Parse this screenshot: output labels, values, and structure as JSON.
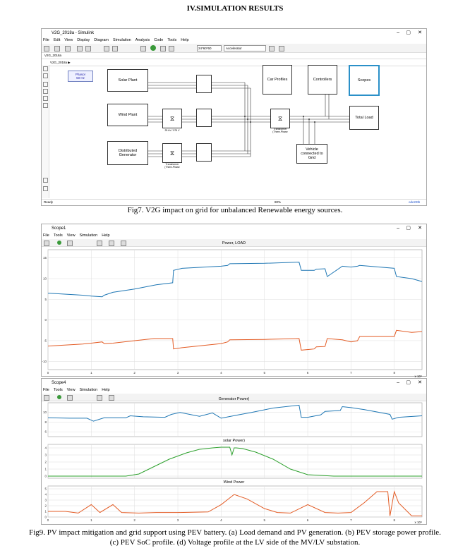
{
  "heading": "IV.SIMULATION RESULTS",
  "fig7": {
    "caption": "Fig7. V2G impact on grid for unbalanced Renewable energy sources.",
    "window_title": "V2G_2018a - Simulink",
    "menu": [
      "File",
      "Edit",
      "View",
      "Display",
      "Diagram",
      "Simulation",
      "Analysis",
      "Code",
      "Tools",
      "Help"
    ],
    "tab": "V2G_2018a",
    "breadcrumb": "V2G_2018a",
    "sim_time": "24*60*60",
    "sim_mode": "Accelerator",
    "blocks": {
      "powergui_line1": "Phasor",
      "powergui_line2": "50 Hz",
      "solar": "Solar Plant",
      "wind": "Wind Plant",
      "dg_line1": "Distributed",
      "dg_line2": "Generator",
      "car": "Car Profiles",
      "controllers": "Controllers",
      "scopes": "Scopes",
      "total_load": "Total Load",
      "vehicle_line1": "Vehicle",
      "vehicle_line2": "connected to",
      "vehicle_line3": "Grid",
      "tr1": "25 kV / 575 V",
      "tr2_line1": "Transformer",
      "tr2_line2": "(Three-Phase",
      "tr3_line1": "Transformer",
      "tr3_line2": "(Three-Phase"
    },
    "status_left": "Ready",
    "status_mid": "80%",
    "status_right": "ode23tb"
  },
  "scope1": {
    "window_title": "Scope1",
    "menu": [
      "File",
      "Tools",
      "View",
      "Simulation",
      "Help"
    ],
    "plot_title": "Power, LOAD",
    "yticks": [
      "15",
      "10",
      "5",
      "0",
      "-5",
      "-10"
    ],
    "xticks": [
      "0",
      "1",
      "2",
      "3",
      "4",
      "5",
      "6",
      "7",
      "8"
    ],
    "x_exponent": "x 10⁴"
  },
  "scope4": {
    "window_title": "Scope4",
    "menu": [
      "File",
      "Tools",
      "View",
      "Simulation",
      "Help"
    ],
    "plots": [
      {
        "title": "Generator Power)",
        "yticks": [
          "10",
          "8",
          "6"
        ]
      },
      {
        "title": "solar Power)",
        "yticks": [
          "4",
          "3",
          "2",
          "1",
          "0"
        ]
      },
      {
        "title": "Wind Power",
        "yticks": [
          "5",
          "4",
          "3",
          "2",
          "1",
          "0"
        ]
      }
    ],
    "xticks": [
      "0",
      "1",
      "2",
      "3",
      "4",
      "5",
      "6",
      "7",
      "8"
    ],
    "x_exponent": "x 10⁴"
  },
  "chart_data": [
    {
      "type": "line",
      "title": "Power, LOAD",
      "xlabel": "",
      "ylabel": "",
      "xlim": [
        0,
        86400
      ],
      "ylim": [
        -12,
        17
      ],
      "grid": true,
      "series": [
        {
          "color": "#1f77b4",
          "x": [
            0,
            8000,
            10000,
            12500,
            13000,
            15000,
            20000,
            25000,
            28800,
            29000,
            31000,
            40000,
            41500,
            42000,
            50000,
            58000,
            58500,
            61500,
            62000,
            64000,
            64500,
            68000,
            70000,
            71500,
            72000,
            80000,
            80500,
            84000,
            86400
          ],
          "values": [
            6.5,
            6.0,
            5.8,
            5.6,
            6.0,
            6.7,
            7.5,
            8.5,
            9.0,
            12.0,
            12.5,
            13.0,
            13.2,
            13.6,
            13.7,
            14.0,
            12.0,
            12.0,
            12.3,
            12.4,
            10.5,
            13.0,
            12.8,
            13.0,
            13.2,
            12.5,
            10.5,
            10.0,
            9.3
          ]
        },
        {
          "color": "#e35b24",
          "x": [
            0,
            8000,
            10000,
            12500,
            13000,
            15000,
            20000,
            24500,
            28800,
            29000,
            31000,
            40000,
            41500,
            42000,
            50000,
            58000,
            58500,
            61500,
            62000,
            64000,
            64500,
            68000,
            70000,
            71500,
            72000,
            80000,
            80500,
            84000,
            86400
          ],
          "values": [
            -6.3,
            -5.8,
            -5.6,
            -5.3,
            -5.7,
            -5.6,
            -5.0,
            -4.5,
            -4.5,
            -7.0,
            -6.7,
            -5.7,
            -5.3,
            -4.8,
            -4.7,
            -4.5,
            -7.3,
            -7.0,
            -6.5,
            -6.4,
            -4.5,
            -4.8,
            -5.3,
            -5.0,
            -4.0,
            -4.0,
            -2.5,
            -3.0,
            -2.8
          ]
        }
      ]
    },
    {
      "type": "line",
      "title": "Generator Power)",
      "xlim": [
        0,
        86400
      ],
      "ylim": [
        5,
        12
      ],
      "grid": true,
      "series": [
        {
          "color": "#1f77b4",
          "x": [
            0,
            5000,
            9000,
            10500,
            13000,
            18000,
            19000,
            22000,
            27000,
            28500,
            30500,
            35000,
            38000,
            40000,
            44000,
            47000,
            52000,
            58000,
            58500,
            60000,
            63000,
            64000,
            67500,
            68000,
            70000,
            73000,
            79000,
            79500,
            81000,
            86400
          ],
          "values": [
            8.9,
            8.8,
            8.8,
            8.2,
            8.9,
            8.9,
            9.3,
            9.1,
            9.0,
            9.6,
            10.0,
            9.2,
            9.9,
            8.8,
            9.5,
            10.0,
            10.9,
            11.5,
            9.0,
            9.0,
            9.5,
            10.2,
            10.4,
            11.2,
            11.0,
            10.6,
            9.6,
            8.6,
            9.0,
            9.3
          ]
        }
      ]
    },
    {
      "type": "line",
      "title": "solar Power)",
      "xlim": [
        0,
        86400
      ],
      "ylim": [
        -0.3,
        4.5
      ],
      "grid": true,
      "series": [
        {
          "color": "#2ca02c",
          "x": [
            0,
            10000,
            18000,
            21000,
            24000,
            28000,
            32000,
            35000,
            38000,
            40000,
            42000,
            42500,
            43000,
            43500,
            45000,
            48000,
            52000,
            56000,
            60000,
            66000,
            86400
          ],
          "values": [
            0,
            0,
            0,
            0.3,
            1.2,
            2.4,
            3.3,
            3.8,
            4.0,
            4.1,
            4.1,
            3.0,
            4.0,
            4.0,
            3.9,
            3.4,
            2.4,
            1.0,
            0.2,
            0,
            0
          ]
        }
      ]
    },
    {
      "type": "line",
      "title": "Wind Power",
      "xlim": [
        0,
        86400
      ],
      "ylim": [
        0,
        5.5
      ],
      "grid": true,
      "series": [
        {
          "color": "#e35b24",
          "x": [
            0,
            4000,
            7000,
            10000,
            12000,
            15000,
            17000,
            21000,
            25000,
            30000,
            37000,
            40000,
            43000,
            46000,
            50000,
            53000,
            56000,
            60000,
            64000,
            67000,
            70000,
            73000,
            76000,
            77000,
            78500,
            79000,
            80000,
            81000,
            84000,
            86400
          ],
          "values": [
            1.0,
            1.0,
            0.7,
            2.2,
            0.8,
            2.2,
            0.8,
            0.7,
            0.8,
            0.8,
            0.9,
            2.2,
            4.0,
            3.2,
            1.5,
            0.8,
            0.7,
            2.2,
            0.8,
            0.7,
            0.8,
            2.5,
            4.5,
            4.5,
            4.5,
            0.2,
            4.5,
            2.5,
            0.2,
            0.2
          ]
        }
      ]
    }
  ],
  "fig9": {
    "caption_line1": "Fig9. PV impact mitigation and grid support using PEV battery. (a) Load demand and PV generation. (b) PEV storage power profile.",
    "caption_line2": "(c) PEV SoC profile. (d) Voltage profile at the LV side of the MV/LV substation."
  }
}
